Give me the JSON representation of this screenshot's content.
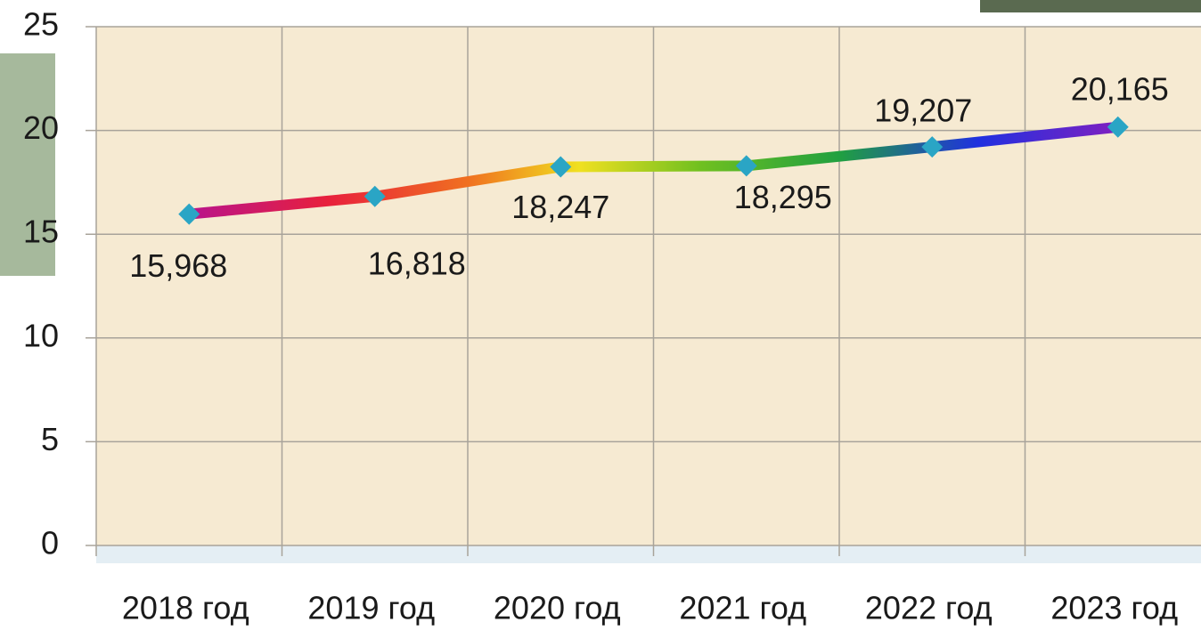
{
  "chart_data": {
    "type": "line",
    "categories": [
      "2018 год",
      "2019 год",
      "2020 год",
      "2021 год",
      "2022 год",
      "2023 год"
    ],
    "values": [
      15.968,
      16.818,
      18.247,
      18.295,
      19.207,
      20.165
    ],
    "value_labels": [
      "15,968",
      "16,818",
      "18,247",
      "18,295",
      "19,207",
      "20,165"
    ],
    "marker_color": "#2aa5c5",
    "ylim": [
      0,
      25
    ],
    "yticks": [
      0,
      5,
      10,
      15,
      20,
      25
    ],
    "grid": true
  }
}
